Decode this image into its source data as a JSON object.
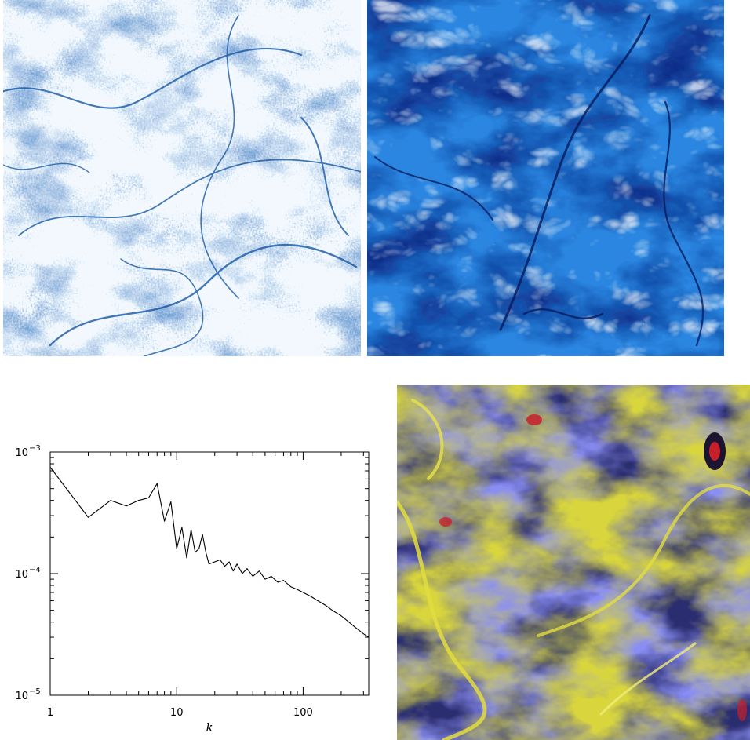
{
  "figure": {
    "panels": [
      {
        "id": "a",
        "kind": "image",
        "depicts": "blue tracer-particle density field",
        "colors": [
          "#ffffff",
          "#8fc3ef",
          "#1a63b8",
          "#0a2a6a"
        ]
      },
      {
        "id": "b",
        "kind": "image",
        "depicts": "blue continuous scalar/vorticity field",
        "colors": [
          "#e8f3ff",
          "#3f95e6",
          "#0b57c8",
          "#081a5a"
        ]
      },
      {
        "id": "d",
        "kind": "image",
        "depicts": "purple/yellow/red passive scalar field",
        "colors": [
          "#8a8ef2",
          "#3c3f8a",
          "#d8d43a",
          "#d0202a"
        ]
      }
    ]
  },
  "chart_data": {
    "type": "line",
    "xscale": "log",
    "yscale": "log",
    "xlim": [
      1,
      330
    ],
    "ylim": [
      1e-05,
      0.001
    ],
    "xticks": [
      1,
      10,
      100
    ],
    "xtick_labels": [
      "1",
      "10",
      "100"
    ],
    "yticks": [
      1e-05,
      0.0001,
      0.001
    ],
    "ytick_labels": [
      "10",
      "10",
      "10"
    ],
    "ytick_exponents": [
      "−5",
      "−4",
      "−3"
    ],
    "xlabel": "k",
    "ylabel": "",
    "series": [
      {
        "line_color": "#000000",
        "x": [
          1,
          2,
          3,
          4,
          5,
          6,
          7,
          8,
          9,
          10,
          11,
          12,
          13,
          14,
          15,
          16,
          17,
          18,
          20,
          22,
          24,
          26,
          28,
          30,
          33,
          36,
          40,
          45,
          50,
          56,
          63,
          70,
          80,
          90,
          100,
          115,
          130,
          150,
          170,
          200,
          230,
          260,
          300,
          330
        ],
        "y": [
          0.00075,
          0.00029,
          0.0004,
          0.00036,
          0.0004,
          0.00042,
          0.00055,
          0.00027,
          0.00039,
          0.00016,
          0.00024,
          0.000135,
          0.00023,
          0.00015,
          0.00016,
          0.00021,
          0.00015,
          0.00012,
          0.000125,
          0.00013,
          0.000115,
          0.000125,
          0.000105,
          0.00012,
          0.0001,
          0.00011,
          9.5e-05,
          0.000105,
          9e-05,
          9.5e-05,
          8.5e-05,
          8.8e-05,
          7.8e-05,
          7.4e-05,
          7e-05,
          6.5e-05,
          6e-05,
          5.5e-05,
          5e-05,
          4.5e-05,
          4e-05,
          3.6e-05,
          3.2e-05,
          3e-05
        ]
      }
    ]
  }
}
